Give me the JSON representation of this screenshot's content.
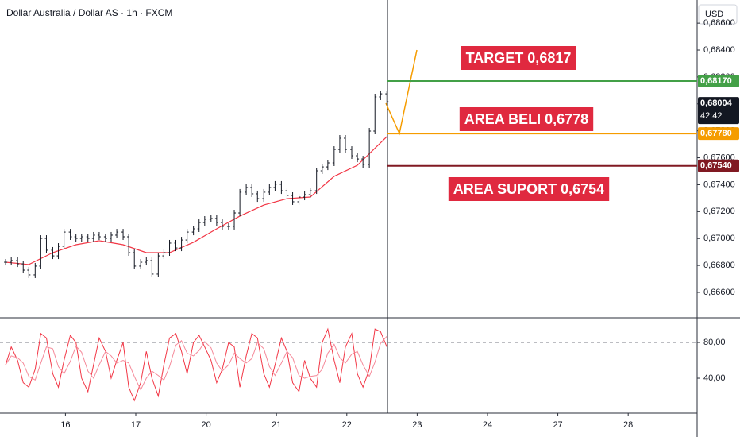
{
  "chart_data": [
    {
      "type": "price",
      "title": "Dollar Australia / Dollar AS · 1h · FXCM",
      "currency": "USD",
      "x": [
        0.15,
        0.23,
        0.32,
        0.4,
        0.48,
        0.57,
        0.65,
        0.73,
        0.82,
        0.9,
        0.98,
        1.07,
        1.15,
        1.23,
        1.32,
        1.4,
        1.48,
        1.57,
        1.65,
        1.73,
        1.82,
        1.9,
        1.98,
        2.07,
        2.15,
        2.23,
        2.32,
        2.4,
        2.48,
        2.57,
        2.65,
        2.73,
        2.82,
        2.9,
        2.98,
        3.07,
        3.15,
        3.23,
        3.32,
        3.4,
        3.48,
        3.57,
        3.65,
        3.73,
        3.82,
        3.9,
        3.98,
        4.07,
        4.15,
        4.23,
        4.32,
        4.4,
        4.48,
        4.57,
        4.65,
        4.73,
        4.82,
        4.9,
        4.98,
        5.07,
        5.15,
        5.23,
        5.32,
        5.4,
        5.48,
        5.57
      ],
      "close": {
        "color": "#131722",
        "values": [
          0.66824,
          0.66836,
          0.66812,
          0.66765,
          0.6673,
          0.66795,
          0.67001,
          0.66913,
          0.66871,
          0.66942,
          0.67048,
          0.67013,
          0.67001,
          0.67013,
          0.67001,
          0.67025,
          0.67013,
          0.67001,
          0.67025,
          0.67048,
          0.67013,
          0.66895,
          0.66795,
          0.66824,
          0.66836,
          0.66736,
          0.66871,
          0.66895,
          0.66966,
          0.6693,
          0.66989,
          0.67048,
          0.67072,
          0.67119,
          0.67143,
          0.67149,
          0.67119,
          0.6709,
          0.6709,
          0.6719,
          0.67344,
          0.67379,
          0.67332,
          0.67296,
          0.67344,
          0.67379,
          0.67403,
          0.67355,
          0.6732,
          0.67273,
          0.67308,
          0.67326,
          0.67355,
          0.67503,
          0.67532,
          0.67562,
          0.67662,
          0.67745,
          0.67662,
          0.67615,
          0.67591,
          0.6755,
          0.67798,
          0.68052,
          0.68075,
          0.68016
        ]
      },
      "ma": {
        "color": "#f23645",
        "x": [
          0.15,
          0.48,
          0.82,
          1.15,
          1.48,
          1.82,
          2.15,
          2.48,
          2.82,
          3.15,
          3.48,
          3.82,
          4.15,
          4.48,
          4.82,
          5.15,
          5.57
        ],
        "values": [
          0.66824,
          0.66807,
          0.66895,
          0.66954,
          0.66984,
          0.66954,
          0.66895,
          0.66895,
          0.66972,
          0.67072,
          0.67167,
          0.67249,
          0.67296,
          0.67308,
          0.67462,
          0.67544,
          0.67757
        ]
      },
      "xlim": [
        0.07,
        9.98
      ],
      "xticks": [
        {
          "value": 1,
          "label": "16"
        },
        {
          "value": 2,
          "label": "17"
        },
        {
          "value": 3,
          "label": "20"
        },
        {
          "value": 4,
          "label": "21"
        },
        {
          "value": 5,
          "label": "22"
        },
        {
          "value": 6,
          "label": "23"
        },
        {
          "value": 7,
          "label": "24"
        },
        {
          "value": 8,
          "label": "27"
        },
        {
          "value": 9,
          "label": "28"
        }
      ],
      "ylim": [
        0.66411,
        0.68772
      ],
      "yticks": [
        {
          "value": 0.666,
          "label": "0,66600"
        },
        {
          "value": 0.668,
          "label": "0,66800"
        },
        {
          "value": 0.67,
          "label": "0,67000"
        },
        {
          "value": 0.672,
          "label": "0,67200"
        },
        {
          "value": 0.674,
          "label": "0,67400"
        },
        {
          "value": 0.676,
          "label": "0,67600"
        },
        {
          "value": 0.678,
          "label": "0,67800"
        },
        {
          "value": 0.68,
          "label": "0,68000"
        },
        {
          "value": 0.682,
          "label": "0,68200"
        },
        {
          "value": 0.684,
          "label": "0,68400"
        },
        {
          "value": 0.686,
          "label": "0,68600"
        }
      ],
      "levels": [
        {
          "value": 0.6817,
          "label": "0,68170",
          "color": "#43a047",
          "note": "TARGET 0,6817"
        },
        {
          "value": 0.6778,
          "label": "0,67780",
          "color": "#f59c00",
          "note": "AREA BELI 0,6778"
        },
        {
          "value": 0.6754,
          "label": "0,67540",
          "color": "#801922",
          "note": "AREA SUPORT 0,6754"
        }
      ],
      "note_color": "#e0293f",
      "last": {
        "value": 0.68004,
        "label": "0,68004",
        "countdown": "42:42"
      }
    },
    {
      "type": "line",
      "ylim": [
        0.9,
        107.6
      ],
      "yticks": [
        {
          "value": 80,
          "label": "80,00"
        },
        {
          "value": 40,
          "label": "40,00"
        }
      ],
      "bands": [
        20,
        80
      ],
      "series": [
        {
          "color": "#f23645",
          "values": [
            55,
            75,
            60,
            35,
            30,
            50,
            90,
            85,
            45,
            30,
            60,
            88,
            80,
            40,
            25,
            55,
            85,
            70,
            40,
            60,
            80,
            30,
            15,
            35,
            70,
            40,
            20,
            55,
            85,
            90,
            70,
            45,
            80,
            88,
            75,
            60,
            35,
            50,
            80,
            75,
            30,
            65,
            90,
            85,
            45,
            30,
            55,
            85,
            70,
            35,
            25,
            60,
            40,
            30,
            80,
            95,
            60,
            35,
            75,
            90,
            45,
            30,
            50,
            95,
            92,
            75
          ]
        },
        {
          "color": "#f58a9a",
          "values": [
            55,
            65,
            63,
            57,
            42,
            38,
            57,
            75,
            73,
            53,
            45,
            59,
            76,
            69,
            48,
            40,
            55,
            70,
            65,
            57,
            60,
            57,
            42,
            27,
            40,
            48,
            43,
            38,
            53,
            77,
            82,
            68,
            65,
            71,
            81,
            74,
            57,
            48,
            55,
            68,
            62,
            57,
            62,
            80,
            73,
            53,
            43,
            57,
            70,
            63,
            43,
            40,
            42,
            43,
            50,
            68,
            78,
            63,
            57,
            67,
            70,
            55,
            42,
            58,
            79,
            87
          ]
        }
      ]
    }
  ]
}
